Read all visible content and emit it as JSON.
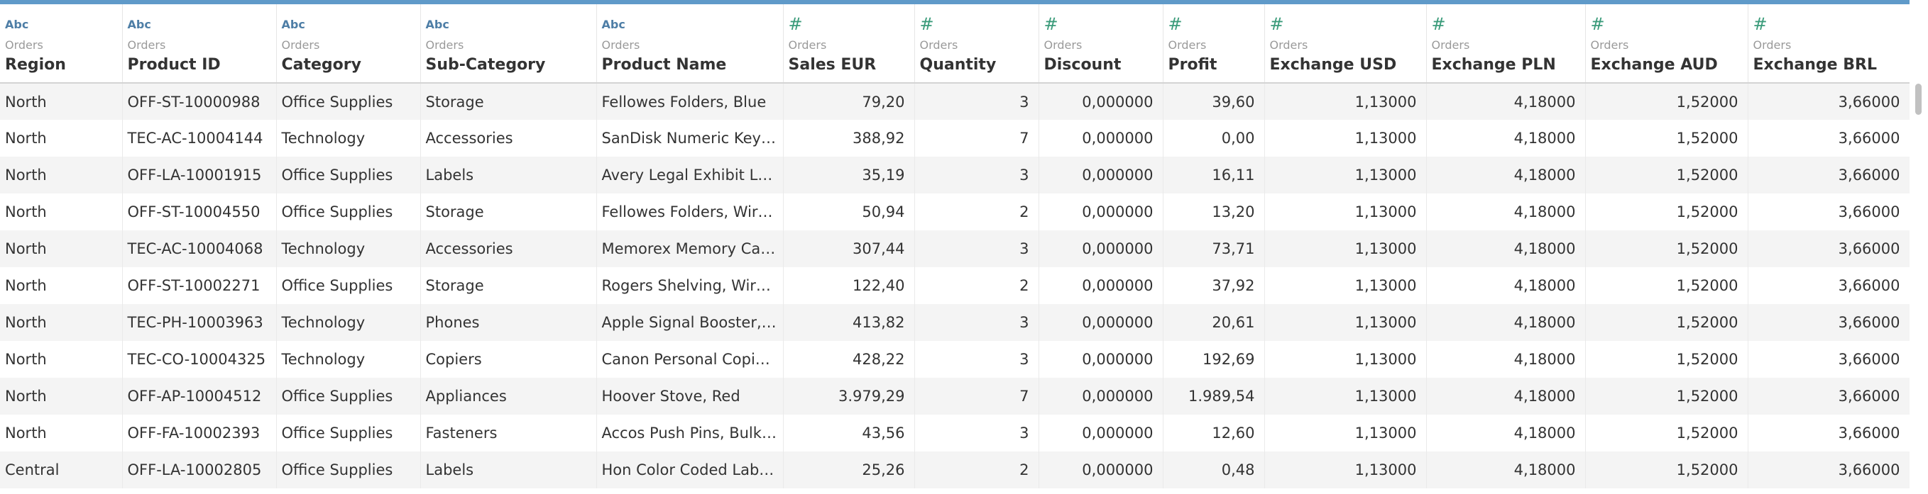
{
  "columns": [
    {
      "type": "Abc",
      "source": "Orders",
      "name": "Region",
      "numeric": false
    },
    {
      "type": "Abc",
      "source": "Orders",
      "name": "Product ID",
      "numeric": false
    },
    {
      "type": "Abc",
      "source": "Orders",
      "name": "Category",
      "numeric": false
    },
    {
      "type": "Abc",
      "source": "Orders",
      "name": "Sub-Category",
      "numeric": false
    },
    {
      "type": "Abc",
      "source": "Orders",
      "name": "Product Name",
      "numeric": false
    },
    {
      "type": "#",
      "source": "Orders",
      "name": "Sales EUR",
      "numeric": true
    },
    {
      "type": "#",
      "source": "Orders",
      "name": "Quantity",
      "numeric": true
    },
    {
      "type": "#",
      "source": "Orders",
      "name": "Discount",
      "numeric": true
    },
    {
      "type": "#",
      "source": "Orders",
      "name": "Profit",
      "numeric": true
    },
    {
      "type": "#",
      "source": "Orders",
      "name": "Exchange USD",
      "numeric": true
    },
    {
      "type": "#",
      "source": "Orders",
      "name": "Exchange PLN",
      "numeric": true
    },
    {
      "type": "#",
      "source": "Orders",
      "name": "Exchange AUD",
      "numeric": true
    },
    {
      "type": "#",
      "source": "Orders",
      "name": "Exchange BRL",
      "numeric": true
    }
  ],
  "rows": [
    [
      "North",
      "OFF-ST-10000988",
      "Office Supplies",
      "Storage",
      "Fellowes Folders, Blue",
      "79,20",
      "3",
      "0,000000",
      "39,60",
      "1,13000",
      "4,18000",
      "1,52000",
      "3,66000"
    ],
    [
      "North",
      "TEC-AC-10004144",
      "Technology",
      "Accessories",
      "SanDisk Numeric Key…",
      "388,92",
      "7",
      "0,000000",
      "0,00",
      "1,13000",
      "4,18000",
      "1,52000",
      "3,66000"
    ],
    [
      "North",
      "OFF-LA-10001915",
      "Office Supplies",
      "Labels",
      "Avery Legal Exhibit La…",
      "35,19",
      "3",
      "0,000000",
      "16,11",
      "1,13000",
      "4,18000",
      "1,52000",
      "3,66000"
    ],
    [
      "North",
      "OFF-ST-10004550",
      "Office Supplies",
      "Storage",
      "Fellowes Folders, Wir…",
      "50,94",
      "2",
      "0,000000",
      "13,20",
      "1,13000",
      "4,18000",
      "1,52000",
      "3,66000"
    ],
    [
      "North",
      "TEC-AC-10004068",
      "Technology",
      "Accessories",
      "Memorex Memory Car…",
      "307,44",
      "3",
      "0,000000",
      "73,71",
      "1,13000",
      "4,18000",
      "1,52000",
      "3,66000"
    ],
    [
      "North",
      "OFF-ST-10002271",
      "Office Supplies",
      "Storage",
      "Rogers Shelving, Wir…",
      "122,40",
      "2",
      "0,000000",
      "37,92",
      "1,13000",
      "4,18000",
      "1,52000",
      "3,66000"
    ],
    [
      "North",
      "TEC-PH-10003963",
      "Technology",
      "Phones",
      "Apple Signal Booster, …",
      "413,82",
      "3",
      "0,000000",
      "20,61",
      "1,13000",
      "4,18000",
      "1,52000",
      "3,66000"
    ],
    [
      "North",
      "TEC-CO-10004325",
      "Technology",
      "Copiers",
      "Canon Personal Copie…",
      "428,22",
      "3",
      "0,000000",
      "192,69",
      "1,13000",
      "4,18000",
      "1,52000",
      "3,66000"
    ],
    [
      "North",
      "OFF-AP-10004512",
      "Office Supplies",
      "Appliances",
      "Hoover Stove, Red",
      "3.979,29",
      "7",
      "0,000000",
      "1.989,54",
      "1,13000",
      "4,18000",
      "1,52000",
      "3,66000"
    ],
    [
      "North",
      "OFF-FA-10002393",
      "Office Supplies",
      "Fasteners",
      "Accos Push Pins, Bulk …",
      "43,56",
      "3",
      "0,000000",
      "12,60",
      "1,13000",
      "4,18000",
      "1,52000",
      "3,66000"
    ],
    [
      "Central",
      "OFF-LA-10002805",
      "Office Supplies",
      "Labels",
      "Hon Color Coded Labe…",
      "25,26",
      "2",
      "0,000000",
      "0,48",
      "1,13000",
      "4,18000",
      "1,52000",
      "3,66000"
    ]
  ]
}
